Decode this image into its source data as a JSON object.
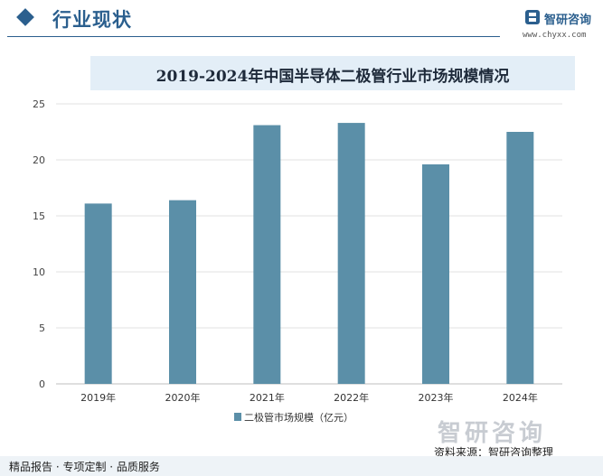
{
  "header": {
    "section_title": "行业现状",
    "brand_name": "智研咨询",
    "brand_url": "www.chyxx.com"
  },
  "chart_data": {
    "type": "bar",
    "title": "2019-2024年中国半导体二极管行业市场规模情况",
    "categories": [
      "2019年",
      "2020年",
      "2021年",
      "2022年",
      "2023年",
      "2024年"
    ],
    "series": [
      {
        "name": "二极管市场规模（亿元）",
        "values": [
          16.1,
          16.4,
          23.1,
          23.3,
          19.6,
          22.5
        ],
        "color": "#5b8fa8"
      }
    ],
    "ylim": [
      0,
      25
    ],
    "yticks": [
      0,
      5,
      10,
      15,
      20,
      25
    ],
    "ytick_labels": [
      "0",
      "5",
      "10",
      "15",
      "20",
      "25"
    ],
    "grid": true,
    "legend_position": "bottom"
  },
  "footer": {
    "services": "精品报告 · 专项定制 · 品质服务",
    "source": "资料来源：智研咨询整理",
    "watermark": "智研咨询"
  }
}
